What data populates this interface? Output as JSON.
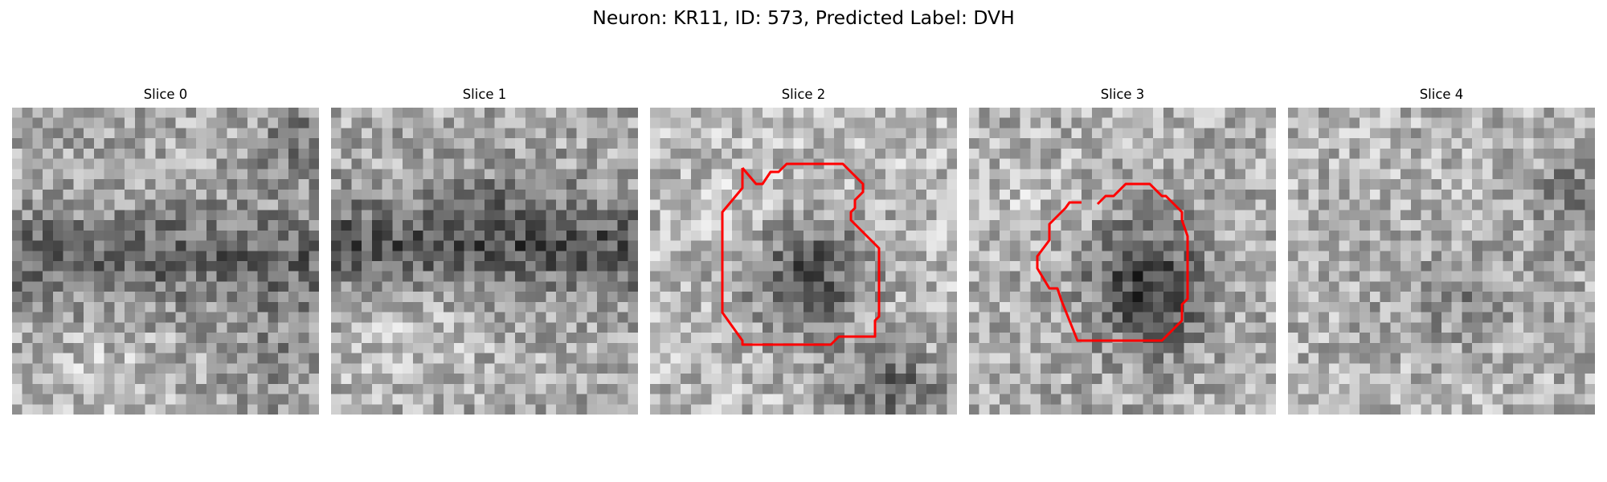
{
  "figure": {
    "title": "Neuron: KR11, ID: 573, Predicted Label: DVH"
  },
  "slices": [
    {
      "title": "Slice 0",
      "has_contour": false
    },
    {
      "title": "Slice 1",
      "has_contour": false
    },
    {
      "title": "Slice 2",
      "has_contour": true
    },
    {
      "title": "Slice 3",
      "has_contour": true
    },
    {
      "title": "Slice 4",
      "has_contour": false
    }
  ],
  "colors": {
    "contour": "#ff0000",
    "background": "#ffffff",
    "colormap": "grayscale"
  }
}
